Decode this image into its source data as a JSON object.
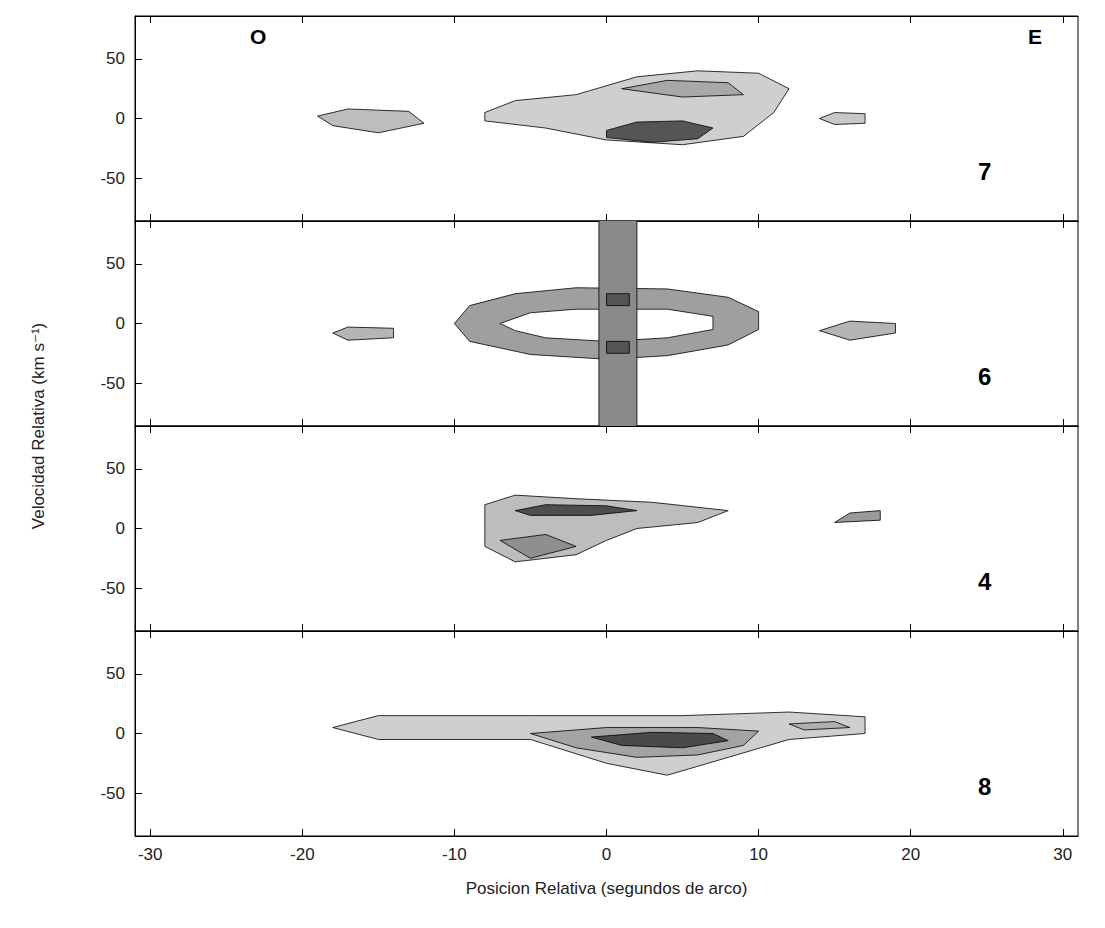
{
  "chart_data": [
    {
      "type": "contour",
      "label": "7",
      "annotations": [
        "O",
        "E"
      ],
      "ylabel": "Velocidad Relativa (km s⁻¹)",
      "xlim": [
        -31,
        31
      ],
      "xticks": [
        -30,
        -20,
        -10,
        0,
        10,
        20,
        30
      ],
      "ylim": [
        -86,
        86
      ],
      "yticks": [
        -50,
        0,
        50
      ],
      "tick_labels": "y",
      "series": [
        {
          "color": "#cfcfcf",
          "values": [
            [
              -8,
              5
            ],
            [
              -6,
              15
            ],
            [
              -2,
              20
            ],
            [
              2,
              35
            ],
            [
              6,
              40
            ],
            [
              10,
              38
            ],
            [
              12,
              25
            ],
            [
              11,
              5
            ],
            [
              9,
              -15
            ],
            [
              5,
              -22
            ],
            [
              0,
              -18
            ],
            [
              -4,
              -8
            ],
            [
              -8,
              -2
            ]
          ]
        },
        {
          "color": "#a8a8a8",
          "values": [
            [
              1,
              25
            ],
            [
              4,
              32
            ],
            [
              8,
              30
            ],
            [
              9,
              20
            ],
            [
              5,
              18
            ]
          ]
        },
        {
          "color": "#555555",
          "values": [
            [
              0,
              -10
            ],
            [
              2,
              -3
            ],
            [
              5,
              -2
            ],
            [
              7,
              -8
            ],
            [
              6,
              -17
            ],
            [
              3,
              -20
            ],
            [
              0,
              -16
            ]
          ]
        },
        {
          "color": "#bdbdbd",
          "values": [
            [
              -19,
              2
            ],
            [
              -17,
              8
            ],
            [
              -13,
              6
            ],
            [
              -12,
              -4
            ],
            [
              -15,
              -12
            ],
            [
              -18,
              -6
            ]
          ]
        },
        {
          "color": "#c8c8c8",
          "values": [
            [
              14,
              0
            ],
            [
              15,
              5
            ],
            [
              17,
              4
            ],
            [
              17,
              -4
            ],
            [
              15,
              -5
            ]
          ]
        }
      ]
    },
    {
      "type": "contour",
      "label": "6",
      "xlim": [
        -31,
        31
      ],
      "xticks": [
        -30,
        -20,
        -10,
        0,
        10,
        20,
        30
      ],
      "ylim": [
        -86,
        86
      ],
      "yticks": [
        -50,
        0,
        50
      ],
      "tick_labels": "y",
      "series": [
        {
          "color": "#9f9f9f",
          "values": [
            [
              -10,
              0
            ],
            [
              -9,
              15
            ],
            [
              -6,
              25
            ],
            [
              -2,
              30
            ],
            [
              4,
              29
            ],
            [
              8,
              22
            ],
            [
              10,
              10
            ],
            [
              10,
              -5
            ],
            [
              8,
              -18
            ],
            [
              4,
              -27
            ],
            [
              0,
              -30
            ],
            [
              -5,
              -26
            ],
            [
              -9,
              -15
            ]
          ]
        },
        {
          "color": "#ffffff",
          "values": [
            [
              -7,
              0
            ],
            [
              -5,
              9
            ],
            [
              -2,
              12
            ],
            [
              4,
              12
            ],
            [
              7,
              6
            ],
            [
              7,
              -5
            ],
            [
              4,
              -12
            ],
            [
              0,
              -15
            ],
            [
              -4,
              -12
            ],
            [
              -6,
              -6
            ]
          ]
        },
        {
          "color": "#8a8a8a",
          "values": [
            [
              -0.5,
              -90
            ],
            [
              2,
              -90
            ],
            [
              2,
              90
            ],
            [
              -0.5,
              90
            ]
          ]
        },
        {
          "color": "#555555",
          "values": [
            [
              0,
              15
            ],
            [
              1.5,
              15
            ],
            [
              1.5,
              25
            ],
            [
              0,
              25
            ]
          ]
        },
        {
          "color": "#555555",
          "values": [
            [
              0,
              -25
            ],
            [
              1.5,
              -25
            ],
            [
              1.5,
              -15
            ],
            [
              0,
              -15
            ]
          ]
        },
        {
          "color": "#b5b5b5",
          "values": [
            [
              -18,
              -8
            ],
            [
              -17,
              -3
            ],
            [
              -14,
              -4
            ],
            [
              -14,
              -12
            ],
            [
              -17,
              -14
            ]
          ]
        },
        {
          "color": "#b5b5b5",
          "values": [
            [
              14,
              -6
            ],
            [
              16,
              2
            ],
            [
              19,
              0
            ],
            [
              19,
              -8
            ],
            [
              16,
              -14
            ]
          ]
        }
      ]
    },
    {
      "type": "contour",
      "label": "4",
      "xlim": [
        -31,
        31
      ],
      "xticks": [
        -30,
        -20,
        -10,
        0,
        10,
        20,
        30
      ],
      "ylim": [
        -86,
        86
      ],
      "yticks": [
        -50,
        0,
        50
      ],
      "tick_labels": "y",
      "series": [
        {
          "color": "#bdbdbd",
          "values": [
            [
              -8,
              20
            ],
            [
              -6,
              28
            ],
            [
              -2,
              25
            ],
            [
              3,
              22
            ],
            [
              8,
              15
            ],
            [
              6,
              5
            ],
            [
              2,
              0
            ],
            [
              0,
              -10
            ],
            [
              -2,
              -22
            ],
            [
              -6,
              -28
            ],
            [
              -8,
              -15
            ],
            [
              -8,
              0
            ]
          ]
        },
        {
          "color": "#4d4d4d",
          "values": [
            [
              -6,
              15
            ],
            [
              -4,
              20
            ],
            [
              0,
              19
            ],
            [
              2,
              15
            ],
            [
              -1,
              11
            ],
            [
              -5,
              11
            ]
          ]
        },
        {
          "color": "#8f8f8f",
          "values": [
            [
              -7,
              -10
            ],
            [
              -4,
              -5
            ],
            [
              -2,
              -15
            ],
            [
              -5,
              -25
            ]
          ]
        },
        {
          "color": "#9a9a9a",
          "values": [
            [
              15,
              5
            ],
            [
              16,
              13
            ],
            [
              18,
              15
            ],
            [
              18,
              7
            ]
          ]
        }
      ]
    },
    {
      "type": "contour",
      "label": "8",
      "xlabel": "Posicion Relativa (segundos de arco)",
      "xlim": [
        -31,
        31
      ],
      "xticks": [
        -30,
        -20,
        -10,
        0,
        10,
        20,
        30
      ],
      "ylim": [
        -86,
        86
      ],
      "yticks": [
        -50,
        0,
        50
      ],
      "series": [
        {
          "color": "#cfcfcf",
          "values": [
            [
              -18,
              5
            ],
            [
              -15,
              15
            ],
            [
              -5,
              15
            ],
            [
              5,
              15
            ],
            [
              12,
              18
            ],
            [
              17,
              14
            ],
            [
              17,
              0
            ],
            [
              12,
              -5
            ],
            [
              8,
              -20
            ],
            [
              4,
              -35
            ],
            [
              0,
              -25
            ],
            [
              -5,
              -5
            ],
            [
              -15,
              -5
            ]
          ]
        },
        {
          "color": "#a3a3a3",
          "values": [
            [
              -5,
              0
            ],
            [
              0,
              5
            ],
            [
              6,
              5
            ],
            [
              10,
              2
            ],
            [
              9,
              -10
            ],
            [
              6,
              -18
            ],
            [
              2,
              -20
            ],
            [
              -2,
              -12
            ]
          ]
        },
        {
          "color": "#4a4a4a",
          "values": [
            [
              -1,
              -3
            ],
            [
              3,
              1
            ],
            [
              7,
              0
            ],
            [
              8,
              -6
            ],
            [
              5,
              -12
            ],
            [
              1,
              -10
            ]
          ]
        },
        {
          "color": "#b0b0b0",
          "values": [
            [
              12,
              8
            ],
            [
              15,
              10
            ],
            [
              16,
              5
            ],
            [
              13,
              3
            ]
          ]
        }
      ]
    }
  ]
}
